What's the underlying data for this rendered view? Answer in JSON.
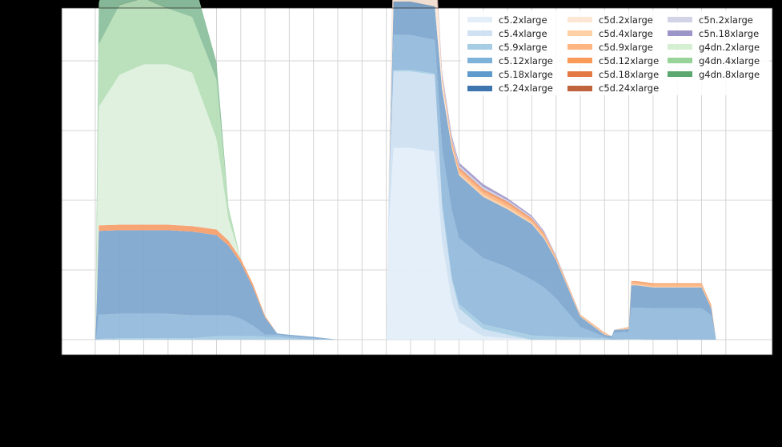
{
  "chart_data": {
    "type": "area",
    "stacked": true,
    "title": "",
    "xlabel": "",
    "ylabel": "",
    "x_tick_labels": [],
    "y_tick_labels": [],
    "grid": true,
    "legend_position": "upper right",
    "legend_columns": 3,
    "ylim": [
      -0.2,
      4.8
    ],
    "xlim": [
      -1.4,
      27.9
    ],
    "x": [
      0,
      0.05,
      0.15,
      1,
      2,
      3,
      4,
      5,
      5.5,
      6,
      6.5,
      7,
      7.5,
      8,
      9,
      9.5,
      10,
      12,
      12.1,
      12.3,
      13,
      14,
      14.3,
      14.7,
      15,
      16,
      17,
      18,
      18.5,
      19,
      20,
      21,
      21.3,
      21.4,
      22,
      22.1,
      22.3,
      23,
      24,
      25,
      25.4,
      25.6
    ],
    "series": [
      {
        "name": "c5.2xlarge",
        "color": "#e3eef9",
        "values": [
          0,
          0,
          0,
          0,
          0,
          0,
          0,
          0,
          0,
          0,
          0,
          0,
          0,
          0,
          0,
          0,
          0,
          0,
          1.6,
          2.75,
          2.75,
          2.7,
          1.4,
          0.55,
          0.25,
          0.05,
          0.02,
          0,
          0,
          0,
          0,
          0,
          0,
          0,
          0,
          0,
          0,
          0,
          0,
          0,
          0,
          0
        ]
      },
      {
        "name": "c5.4xlarge",
        "color": "#cfe1f2",
        "values": [
          0,
          0,
          0,
          0,
          0,
          0,
          0,
          0,
          0,
          0,
          0,
          0,
          0,
          0,
          0,
          0,
          0,
          0,
          0.5,
          1.1,
          1.1,
          1.1,
          0.5,
          0.3,
          0.2,
          0.1,
          0.05,
          0,
          0,
          0,
          0,
          0,
          0,
          0,
          0,
          0,
          0,
          0,
          0,
          0,
          0,
          0
        ]
      },
      {
        "name": "c5.9xlarge",
        "color": "#a6cde4",
        "values": [
          0,
          0,
          0.01,
          0.02,
          0.02,
          0.02,
          0.02,
          0.05,
          0.05,
          0.05,
          0.05,
          0.04,
          0.04,
          0.02,
          0,
          0,
          0,
          0,
          0,
          0.02,
          0.02,
          0.02,
          0.05,
          0.05,
          0.06,
          0.07,
          0.07,
          0.06,
          0.05,
          0.04,
          0.03,
          0.02,
          0,
          0,
          0.01,
          0.01,
          0.01,
          0,
          0,
          0,
          0,
          0
        ]
      },
      {
        "name": "c5.12xlarge",
        "color": "#93bbdc",
        "values": [
          0,
          0.05,
          0.35,
          0.35,
          0.35,
          0.35,
          0.33,
          0.3,
          0.3,
          0.25,
          0.15,
          0.03,
          0.03,
          0.03,
          0.02,
          0.01,
          0,
          0,
          0,
          0.5,
          0.5,
          0.48,
          0.8,
          0.95,
          0.95,
          0.95,
          0.9,
          0.8,
          0.7,
          0.55,
          0.15,
          0.02,
          0.02,
          0.1,
          0.1,
          0.45,
          0.45,
          0.45,
          0.45,
          0.45,
          0.35,
          0
        ]
      },
      {
        "name": "c5.18xlarge",
        "color": "#80a8cf",
        "values": [
          0,
          0.4,
          1.2,
          1.2,
          1.2,
          1.2,
          1.2,
          1.15,
          1.0,
          0.8,
          0.55,
          0.25,
          0.02,
          0.02,
          0.02,
          0.01,
          0,
          0,
          0,
          0.48,
          0.48,
          0.48,
          0.85,
          0.9,
          0.9,
          0.88,
          0.83,
          0.8,
          0.7,
          0.55,
          0.15,
          0.03,
          0.03,
          0.04,
          0.04,
          0.32,
          0.32,
          0.3,
          0.3,
          0.3,
          0.1,
          0
        ]
      },
      {
        "name": "c5.24xlarge",
        "color": "#4a7fb5",
        "values": [
          0,
          0,
          0,
          0,
          0,
          0,
          0,
          0,
          0,
          0,
          0,
          0,
          0,
          0,
          0,
          0,
          0,
          0,
          0,
          0,
          0,
          0,
          0,
          0,
          0,
          0,
          0,
          0,
          0,
          0,
          0,
          0,
          0,
          0,
          0,
          0,
          0,
          0,
          0,
          0,
          0,
          0
        ]
      },
      {
        "name": "c5d.2xlarge",
        "color": "#fdeadb",
        "values": [
          0,
          0,
          0,
          0,
          0,
          0,
          0,
          0,
          0,
          0,
          0,
          0,
          0,
          0,
          0,
          0,
          0,
          0,
          0.3,
          0.75,
          0.75,
          0.75,
          0.1,
          0,
          0,
          0,
          0,
          0,
          0,
          0,
          0,
          0,
          0,
          0,
          0,
          0,
          0,
          0,
          0,
          0,
          0,
          0
        ]
      },
      {
        "name": "c5d.4xlarge",
        "color": "#fdd0a6",
        "values": [
          0,
          0,
          0,
          0,
          0,
          0,
          0,
          0,
          0,
          0,
          0,
          0,
          0,
          0,
          0,
          0,
          0,
          0,
          0,
          0,
          0,
          0,
          0.02,
          0.03,
          0.03,
          0.03,
          0.03,
          0.02,
          0.02,
          0.01,
          0.01,
          0.01,
          0,
          0,
          0.01,
          0.01,
          0.01,
          0.01,
          0.01,
          0.01,
          0,
          0
        ]
      },
      {
        "name": "c5d.9xlarge",
        "color": "#fdb682",
        "values": [
          0,
          0,
          0,
          0,
          0,
          0,
          0,
          0,
          0,
          0,
          0,
          0,
          0,
          0,
          0,
          0,
          0,
          0,
          0,
          0,
          0,
          0,
          0.03,
          0.04,
          0.04,
          0.04,
          0.04,
          0.03,
          0.03,
          0.02,
          0.01,
          0.01,
          0,
          0,
          0.01,
          0.03,
          0.03,
          0.03,
          0.03,
          0.03,
          0.03,
          0
        ]
      },
      {
        "name": "c5d.12xlarge",
        "color": "#f7a06e",
        "values": [
          0,
          0.02,
          0.08,
          0.08,
          0.08,
          0.08,
          0.08,
          0.08,
          0.07,
          0.06,
          0.05,
          0.02,
          0,
          0,
          0,
          0,
          0,
          0,
          0,
          0.03,
          0.03,
          0.03,
          0.02,
          0.03,
          0.03,
          0.03,
          0.03,
          0.02,
          0.02,
          0.02,
          0.01,
          0.01,
          0,
          0,
          0.01,
          0.02,
          0.02,
          0.02,
          0.02,
          0.02,
          0.02,
          0
        ]
      },
      {
        "name": "c5d.18xlarge",
        "color": "#e47c4b",
        "values": [
          0,
          0,
          0,
          0,
          0,
          0,
          0,
          0,
          0,
          0,
          0,
          0,
          0,
          0,
          0,
          0,
          0,
          0,
          0,
          0.02,
          0.02,
          0.02,
          0.01,
          0.01,
          0.01,
          0.01,
          0.01,
          0.01,
          0.01,
          0,
          0,
          0,
          0,
          0,
          0,
          0,
          0,
          0,
          0,
          0,
          0,
          0
        ]
      },
      {
        "name": "c5d.24xlarge",
        "color": "#c0653d",
        "values": [
          0,
          0,
          0,
          0,
          0,
          0,
          0,
          0,
          0,
          0,
          0,
          0,
          0,
          0,
          0,
          0,
          0,
          0,
          0,
          0,
          0,
          0,
          0,
          0,
          0,
          0,
          0,
          0,
          0,
          0,
          0,
          0,
          0,
          0,
          0,
          0,
          0,
          0,
          0,
          0,
          0,
          0
        ]
      },
      {
        "name": "c5n.2xlarge",
        "color": "#d0d1e6",
        "values": [
          0,
          0,
          0,
          0,
          0,
          0,
          0,
          0,
          0,
          0,
          0,
          0,
          0,
          0,
          0,
          0,
          0,
          0,
          0,
          0.04,
          0.04,
          0.04,
          0.03,
          0.03,
          0.03,
          0.03,
          0.02,
          0.02,
          0.01,
          0.01,
          0,
          0,
          0,
          0,
          0,
          0,
          0,
          0,
          0,
          0,
          0,
          0
        ]
      },
      {
        "name": "c5n.18xlarge",
        "color": "#a49cca",
        "values": [
          0,
          0,
          0,
          0,
          0,
          0,
          0,
          0,
          0,
          0,
          0,
          0,
          0,
          0,
          0,
          0,
          0,
          0,
          0,
          0.06,
          0.06,
          0.06,
          0.03,
          0.04,
          0.04,
          0.04,
          0.03,
          0.02,
          0.02,
          0.01,
          0,
          0,
          0,
          0,
          0,
          0,
          0,
          0,
          0,
          0,
          0,
          0
        ]
      },
      {
        "name": "g4dn.2xlarge",
        "color": "#dff0de",
        "values": [
          0,
          0.5,
          1.7,
          2.15,
          2.3,
          2.3,
          2.2,
          1.3,
          0.3,
          0,
          0,
          0,
          0,
          0,
          0,
          0,
          0,
          0,
          0,
          0,
          0,
          0,
          0,
          0,
          0,
          0,
          0,
          0,
          0,
          0,
          0,
          0,
          0,
          0,
          0,
          0,
          0,
          0,
          0,
          0,
          0,
          0
        ]
      },
      {
        "name": "g4dn.4xlarge",
        "color": "#b6dfb7",
        "values": [
          0,
          0.3,
          0.9,
          1.0,
          0.95,
          0.8,
          0.8,
          0.85,
          0.15,
          0,
          0,
          0,
          0,
          0,
          0,
          0,
          0,
          0,
          0,
          0,
          0,
          0,
          0,
          0,
          0,
          0,
          0,
          0,
          0,
          0,
          0,
          0,
          0,
          0,
          0,
          0,
          0,
          0,
          0,
          0,
          0,
          0
        ]
      },
      {
        "name": "g4dn.8xlarge",
        "color": "#8cc09d",
        "values": [
          0,
          0.35,
          0.6,
          0.8,
          0.6,
          0.65,
          0.6,
          0.25,
          0.02,
          0,
          0,
          0,
          0,
          0,
          0,
          0,
          0,
          0,
          0,
          0,
          0,
          0,
          0,
          0,
          0,
          0,
          0,
          0,
          0,
          0,
          0,
          0,
          0,
          0,
          0,
          0,
          0,
          0,
          0,
          0,
          0,
          0
        ]
      }
    ]
  },
  "legend": {
    "items": [
      {
        "label": "c5.2xlarge",
        "color": "#e3eef9"
      },
      {
        "label": "c5.4xlarge",
        "color": "#cfe1f2"
      },
      {
        "label": "c5.9xlarge",
        "color": "#a6cde4"
      },
      {
        "label": "c5.12xlarge",
        "color": "#7fb2d8"
      },
      {
        "label": "c5.18xlarge",
        "color": "#5e9bcc"
      },
      {
        "label": "c5.24xlarge",
        "color": "#3f76b0"
      },
      {
        "label": "c5d.2xlarge",
        "color": "#fde6d3"
      },
      {
        "label": "c5d.4xlarge",
        "color": "#fdd0a6"
      },
      {
        "label": "c5d.9xlarge",
        "color": "#fdb682"
      },
      {
        "label": "c5d.12xlarge",
        "color": "#f89b58"
      },
      {
        "label": "c5d.18xlarge",
        "color": "#e37a45"
      },
      {
        "label": "c5d.24xlarge",
        "color": "#bf643d"
      },
      {
        "label": "c5n.2xlarge",
        "color": "#d3d3e8"
      },
      {
        "label": "c5n.18xlarge",
        "color": "#9c95c8"
      },
      {
        "label": "g4dn.2xlarge",
        "color": "#d5efd3"
      },
      {
        "label": "g4dn.4xlarge",
        "color": "#98d49a"
      },
      {
        "label": "g4dn.8xlarge",
        "color": "#5aa86f"
      }
    ]
  }
}
